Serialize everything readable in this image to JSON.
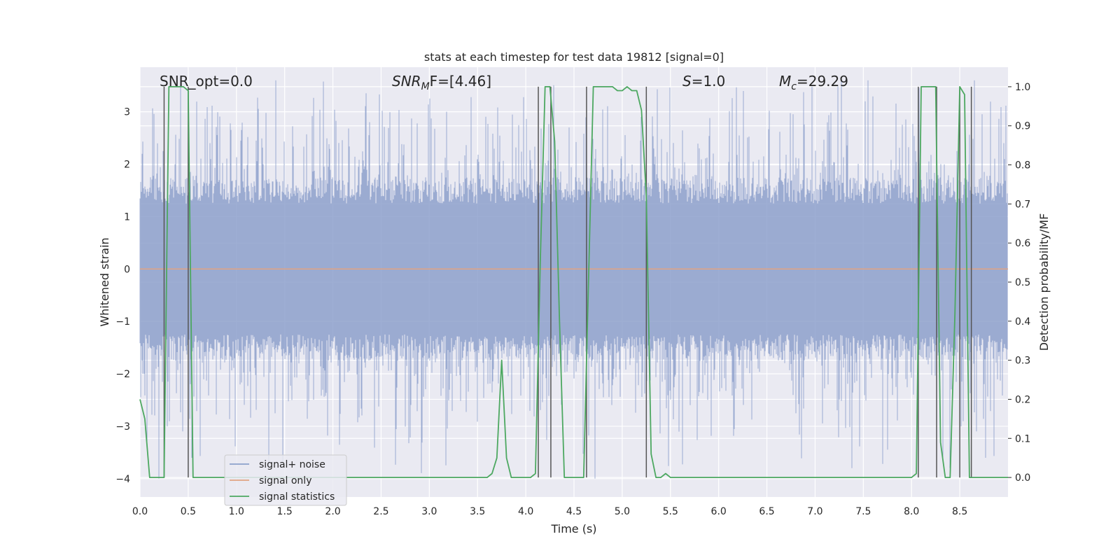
{
  "chart_data": {
    "type": "line",
    "title": "stats at each timestep for test data 19812 [signal=0]",
    "xlabel": "Time (s)",
    "ylabel": "Whitened strain",
    "ylabel_right": "Detection probability/MF",
    "xlim": [
      0.0,
      9.0
    ],
    "ylim": [
      -4.35,
      3.85
    ],
    "ylim_right": [
      -0.05,
      1.05
    ],
    "x_ticks": [
      0.0,
      0.5,
      1.0,
      1.5,
      2.0,
      2.5,
      3.0,
      3.5,
      4.0,
      4.5,
      5.0,
      5.5,
      6.0,
      6.5,
      7.0,
      7.5,
      8.0,
      8.5
    ],
    "x_tick_labels": [
      "0.0",
      "0.5",
      "1.0",
      "1.5",
      "2.0",
      "2.5",
      "3.0",
      "3.5",
      "4.0",
      "4.5",
      "5.0",
      "5.5",
      "6.0",
      "6.5",
      "7.0",
      "7.5",
      "8.0",
      "8.5"
    ],
    "y_ticks": [
      3,
      2,
      1,
      0,
      -1,
      -2,
      -3,
      -4
    ],
    "y_tick_labels": [
      "3",
      "2",
      "1",
      "0",
      "−1",
      "−2",
      "−3",
      "−4"
    ],
    "y_right_ticks": [
      1.0,
      0.9,
      0.8,
      0.7,
      0.6,
      0.5,
      0.4,
      0.3,
      0.2,
      0.1,
      0.0
    ],
    "y_right_tick_labels": [
      "1.0",
      "0.9",
      "0.8",
      "0.7",
      "0.6",
      "0.5",
      "0.4",
      "0.3",
      "0.2",
      "0.1",
      "0.0"
    ],
    "grid": true,
    "annotations": {
      "snr_opt": "SNR_opt=0.0",
      "snr_mf_sym": "SNR",
      "snr_mf_sub": "M",
      "snr_mf_rest": "F=[4.46]",
      "s_sym": "S",
      "s_rest": "=1.0",
      "mc_sym": "M",
      "mc_sub": "c",
      "mc_rest": "=29.29"
    },
    "legend": {
      "location": "lower-left",
      "entries": [
        {
          "label": "signal+ noise",
          "color": "#8da0cb"
        },
        {
          "label": "signal only",
          "color": "#e1a382"
        },
        {
          "label": "signal statistics",
          "color": "#4da861"
        }
      ]
    },
    "series": [
      {
        "name": "signal+ noise",
        "axis": "left",
        "color": "#8da0cb",
        "kind": "noise",
        "typical_amplitude": 1.2,
        "peak_range": [
          -4.0,
          3.6
        ]
      },
      {
        "name": "signal only",
        "axis": "left",
        "color": "#e1a382",
        "x": [
          0.0,
          9.0
        ],
        "y": [
          0.0,
          0.0
        ]
      },
      {
        "name": "signal statistics",
        "axis": "right",
        "color": "#4da861",
        "x": [
          0.0,
          0.05,
          0.1,
          0.15,
          0.2,
          0.25,
          0.3,
          0.35,
          0.4,
          0.45,
          0.5,
          0.55,
          0.6,
          0.65,
          3.6,
          3.65,
          3.7,
          3.75,
          3.8,
          3.85,
          4.0,
          4.05,
          4.1,
          4.15,
          4.2,
          4.25,
          4.3,
          4.35,
          4.4,
          4.45,
          4.6,
          4.65,
          4.7,
          4.75,
          4.8,
          4.85,
          4.9,
          4.95,
          5.0,
          5.05,
          5.1,
          5.15,
          5.2,
          5.25,
          5.3,
          5.35,
          5.4,
          5.45,
          5.5,
          5.55,
          5.6,
          8.0,
          8.05,
          8.1,
          8.15,
          8.2,
          8.25,
          8.3,
          8.35,
          8.4,
          8.45,
          8.5,
          8.55,
          8.6,
          8.65,
          9.0
        ],
        "y": [
          0.2,
          0.15,
          0.0,
          0.0,
          0.0,
          0.0,
          1.0,
          1.0,
          1.0,
          1.0,
          0.99,
          0.0,
          0.0,
          0.0,
          0.0,
          0.01,
          0.05,
          0.3,
          0.05,
          0.0,
          0.0,
          0.0,
          0.01,
          0.55,
          1.0,
          1.0,
          0.86,
          0.4,
          0.0,
          0.0,
          0.0,
          0.5,
          1.0,
          1.0,
          1.0,
          1.0,
          1.0,
          0.99,
          0.99,
          1.0,
          0.99,
          0.99,
          0.94,
          0.72,
          0.06,
          0.0,
          0.0,
          0.01,
          0.0,
          0.0,
          0.0,
          0.0,
          0.01,
          1.0,
          1.0,
          1.0,
          1.0,
          0.09,
          0.0,
          0.0,
          0.42,
          1.0,
          0.98,
          0.0,
          0.0,
          0.0
        ]
      }
    ],
    "vertical_markers": {
      "color": "#555555",
      "x": [
        0.25,
        0.5,
        4.13,
        4.26,
        4.63,
        5.25,
        8.07,
        8.26,
        8.5,
        8.62
      ]
    }
  }
}
